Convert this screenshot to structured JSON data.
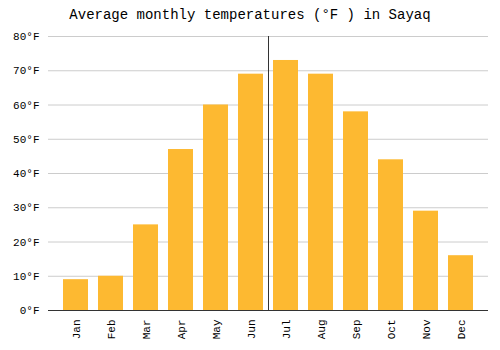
{
  "chart_data": {
    "type": "bar",
    "title": "Average monthly temperatures (°F ) in Sayaq",
    "categories": [
      "Jan",
      "Feb",
      "Mar",
      "Apr",
      "May",
      "Jun",
      "Jul",
      "Aug",
      "Sep",
      "Oct",
      "Nov",
      "Dec"
    ],
    "values": [
      9,
      10,
      25,
      47,
      60,
      69,
      73,
      69,
      58,
      44,
      29,
      16
    ],
    "color": "#FDB931",
    "ylim": [
      0,
      80
    ],
    "yticks": [
      {
        "value": 0,
        "label": "0°F"
      },
      {
        "value": 10,
        "label": "10°F"
      },
      {
        "value": 20,
        "label": "20°F"
      },
      {
        "value": 30,
        "label": "30°F"
      },
      {
        "value": 40,
        "label": "40°F"
      },
      {
        "value": 50,
        "label": "50°F"
      },
      {
        "value": 60,
        "label": "60°F"
      },
      {
        "value": 70,
        "label": "70°F"
      },
      {
        "value": 80,
        "label": "80°F"
      }
    ],
    "grid": true
  }
}
